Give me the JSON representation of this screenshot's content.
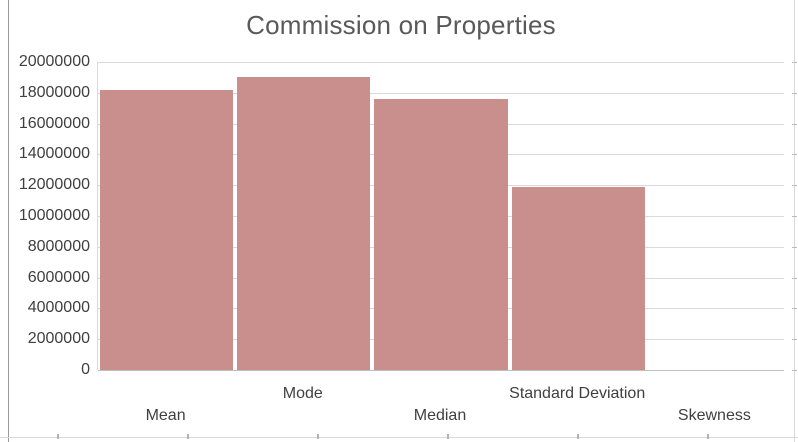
{
  "title": "Commission on Properties",
  "chart_data": {
    "type": "bar",
    "title": "Commission on Properties",
    "categories": [
      "Mean",
      "Mode",
      "Median",
      "Standard Deviation",
      "Skewness"
    ],
    "values": [
      18200000,
      19000000,
      17600000,
      11900000,
      0
    ],
    "xlabel": "",
    "ylabel": "",
    "ylim": [
      0,
      20000000
    ],
    "ytick_values": [
      0,
      2000000,
      4000000,
      6000000,
      8000000,
      10000000,
      12000000,
      14000000,
      16000000,
      18000000,
      20000000
    ],
    "ytick_labels": [
      "0",
      "2000000",
      "4000000",
      "6000000",
      "8000000",
      "10000000",
      "12000000",
      "14000000",
      "16000000",
      "18000000",
      "20000000"
    ],
    "grid": "horizontal",
    "legend_position": "none",
    "bar_color": "#c98f8c",
    "gridline_color": "#d9d9d9",
    "axis_line_color": "#bfbfbf",
    "label_color": "#3f3f3f",
    "title_color": "#595959",
    "category_label_layout": "staggered-two-rows"
  }
}
